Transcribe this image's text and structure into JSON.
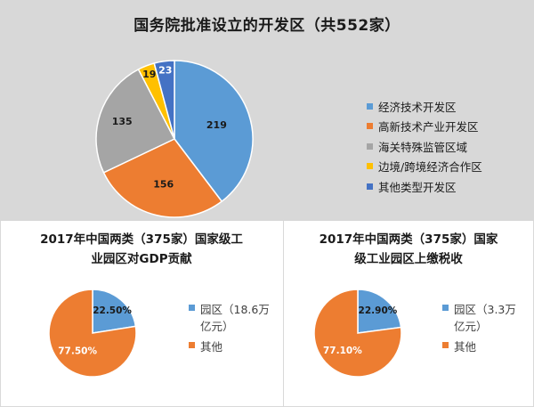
{
  "chart_data": [
    {
      "type": "pie",
      "title": "国务院批准设立的开发区（共552家）",
      "categories": [
        "经济技术开发区",
        "高新技术产业开发区",
        "海关特殊监管区域",
        "边境/跨境经济合作区",
        "其他类型开发区"
      ],
      "values": [
        219,
        156,
        135,
        19,
        23
      ],
      "colors": [
        "#5b9bd5",
        "#ed7d31",
        "#a5a5a5",
        "#ffc000",
        "#4472c4"
      ],
      "data_labels": [
        "219",
        "156",
        "135",
        "19",
        "23"
      ],
      "legend_position": "right"
    },
    {
      "type": "pie",
      "title": "2017年中国两类（375家）国家级工业园区对GDP贡献",
      "title_lines": [
        "2017年中国两类（375家）国家级工",
        "业园区对GDP贡献"
      ],
      "categories": [
        "园区（18.6万亿元）",
        "其他"
      ],
      "legend_lines": [
        [
          "园区（18.6万",
          "亿元）"
        ],
        [
          "其他"
        ]
      ],
      "values": [
        22.5,
        77.5
      ],
      "colors": [
        "#5b9bd5",
        "#ed7d31"
      ],
      "data_labels": [
        "22.50%",
        "77.50%"
      ],
      "legend_position": "right"
    },
    {
      "type": "pie",
      "title": "2017年中国两类（375家）国家级工业园区上缴税收",
      "title_lines": [
        "2017年中国两类（375家）国家",
        "级工业园区上缴税收"
      ],
      "categories": [
        "园区（3.3万亿元）",
        "其他"
      ],
      "legend_lines": [
        [
          "园区（3.3万",
          "亿元）"
        ],
        [
          "其他"
        ]
      ],
      "values": [
        22.9,
        77.1
      ],
      "colors": [
        "#5b9bd5",
        "#ed7d31"
      ],
      "data_labels": [
        "22.90%",
        "77.10%"
      ],
      "legend_position": "right"
    }
  ]
}
